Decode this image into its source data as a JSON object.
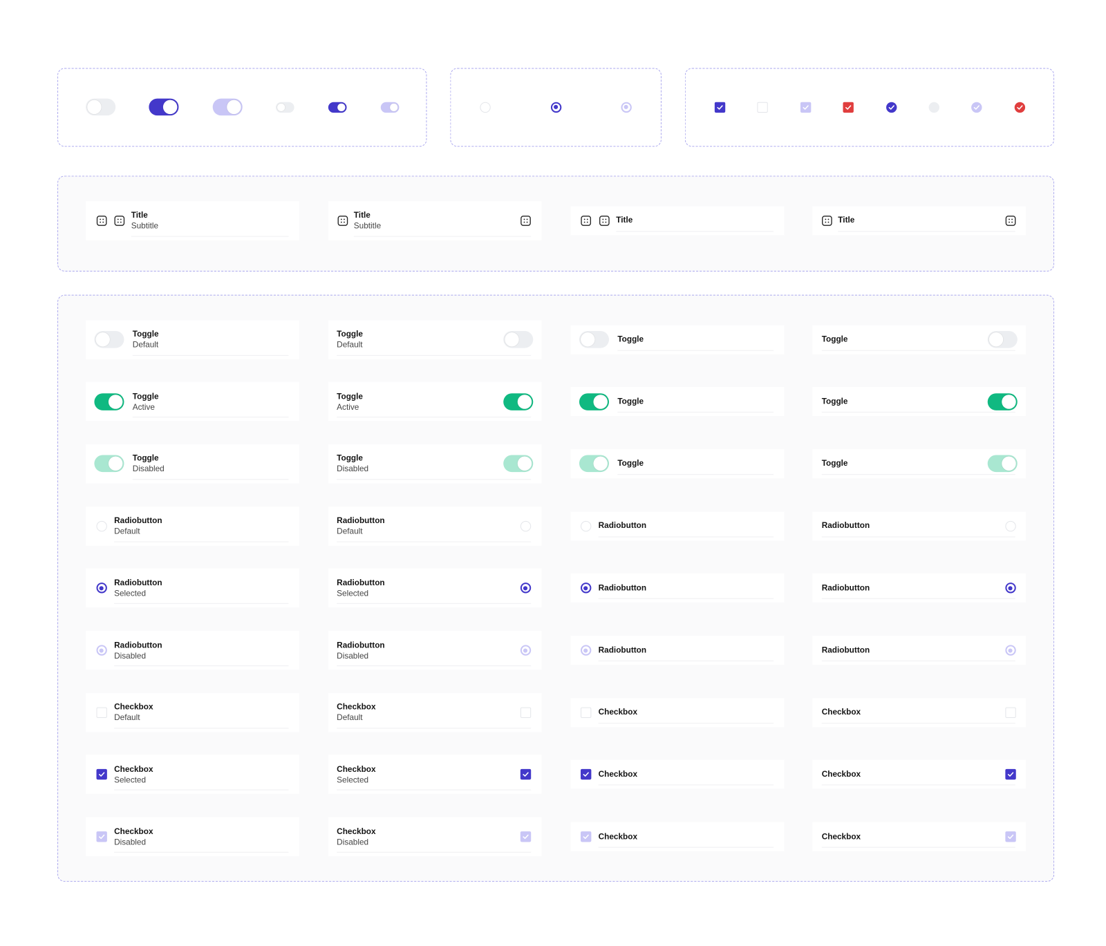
{
  "list_items": [
    {
      "title": "Title",
      "subtitle": "Subtitle"
    },
    {
      "title": "Title",
      "subtitle": "Subtitle"
    },
    {
      "title": "Title"
    },
    {
      "title": "Title"
    }
  ],
  "rows": [
    {
      "title": "Toggle",
      "subtitle": "Default",
      "control": "toggle",
      "checked": false,
      "disabled": false
    },
    {
      "title": "Toggle",
      "subtitle": "Active",
      "control": "toggle",
      "checked": true,
      "disabled": false
    },
    {
      "title": "Toggle",
      "subtitle": "Disabled",
      "control": "toggle",
      "checked": true,
      "disabled": true
    },
    {
      "title": "Radiobutton",
      "subtitle": "Default",
      "control": "radio",
      "checked": false,
      "disabled": false
    },
    {
      "title": "Radiobutton",
      "subtitle": "Selected",
      "control": "radio",
      "checked": true,
      "disabled": false
    },
    {
      "title": "Radiobutton",
      "subtitle": "Disabled",
      "control": "radio",
      "checked": true,
      "disabled": true
    },
    {
      "title": "Checkbox",
      "subtitle": "Default",
      "control": "checkbox",
      "checked": false,
      "disabled": false
    },
    {
      "title": "Checkbox",
      "subtitle": "Selected",
      "control": "checkbox",
      "checked": true,
      "disabled": false
    },
    {
      "title": "Checkbox",
      "subtitle": "Disabled",
      "control": "checkbox",
      "checked": true,
      "disabled": true
    }
  ]
}
